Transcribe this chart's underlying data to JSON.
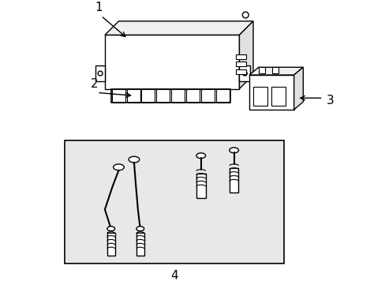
{
  "title": "",
  "background_color": "#ffffff",
  "border_color": "#000000",
  "line_color": "#000000",
  "shadow_color": "#d0d0d0",
  "label_1": "1",
  "label_2": "2",
  "label_3": "3",
  "label_4": "4",
  "label_fontsize": 11,
  "fig_width": 4.89,
  "fig_height": 3.6,
  "dpi": 100
}
